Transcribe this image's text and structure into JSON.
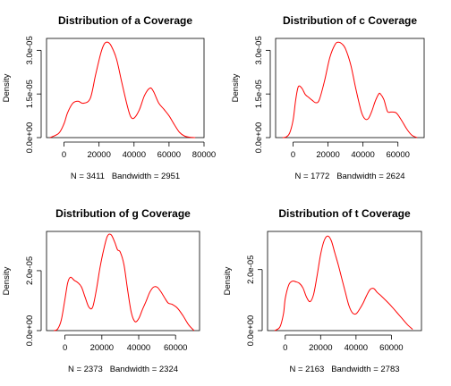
{
  "chart_data": [
    {
      "type": "line",
      "title": "Distribution of a Coverage",
      "xlabel": "N = 3411   Bandwidth = 2951",
      "ylabel": "Density",
      "x_ticks": [
        0,
        20000,
        40000,
        60000,
        80000
      ],
      "x_tick_labels": [
        "0",
        "20000",
        "40000",
        "60000",
        "80000"
      ],
      "y_ticks": [
        0,
        1.5e-05,
        3e-05
      ],
      "y_tick_labels": [
        "0.0e+00",
        "1.5e-05",
        "3.0e-05"
      ],
      "xlim": [
        -10000,
        80000
      ],
      "ylim": [
        0,
        3.41e-05
      ],
      "series": [
        {
          "color": "#ff0000",
          "x": [
            -8000,
            -3000,
            0,
            2000,
            5000,
            8000,
            11000,
            15000,
            18000,
            21000,
            23000,
            25000,
            27000,
            30000,
            33000,
            36000,
            38000,
            40000,
            43000,
            46000,
            49000,
            51000,
            54000,
            57000,
            60000,
            63000,
            66000,
            69000,
            72000,
            75000
          ],
          "y": [
            0.0,
            1.5e-06,
            4.8e-06,
            8.5e-06,
            1.18e-05,
            1.25e-05,
            1.18e-05,
            1.35e-05,
            2.15e-05,
            2.9e-05,
            3.22e-05,
            3.28e-05,
            3.15e-05,
            2.7e-05,
            1.9e-05,
            1.13e-05,
            7.3e-06,
            6.7e-06,
            9.5e-06,
            1.45e-05,
            1.7e-05,
            1.6e-05,
            1.2e-05,
            9.8e-06,
            7.5e-06,
            4.5e-06,
            1.8e-06,
            5e-07,
            1e-07,
            0.0
          ]
        }
      ]
    },
    {
      "type": "line",
      "title": "Distribution of c Coverage",
      "xlabel": "N = 1772   Bandwidth = 2624",
      "ylabel": "Density",
      "x_ticks": [
        0,
        20000,
        40000,
        60000
      ],
      "x_tick_labels": [
        "0",
        "20000",
        "40000",
        "60000"
      ],
      "y_ticks": [
        0,
        1.5e-05,
        3e-05
      ],
      "y_tick_labels": [
        "0.0e+00",
        "1.5e-05",
        "3.0e-05"
      ],
      "xlim": [
        -10000,
        75000
      ],
      "ylim": [
        0,
        3.41e-05
      ],
      "series": [
        {
          "color": "#ff0000",
          "x": [
            -6000,
            -4000,
            -2000,
            0,
            1500,
            3000,
            5000,
            7000,
            9000,
            11000,
            13000,
            15000,
            18000,
            21000,
            24000,
            26000,
            28000,
            30000,
            33000,
            36000,
            39000,
            41000,
            43000,
            45000,
            47000,
            49000,
            50000,
            52000,
            54000,
            56000,
            59000,
            62000,
            65000,
            68000,
            71000
          ],
          "y": [
            0.0,
            2e-07,
            1.5e-06,
            6e-06,
            1.3e-05,
            1.75e-05,
            1.7e-05,
            1.48e-05,
            1.38e-05,
            1.28e-05,
            1.2e-05,
            1.3e-05,
            1.95e-05,
            2.75e-05,
            3.2e-05,
            3.28e-05,
            3.22e-05,
            3.05e-05,
            2.5e-05,
            1.65e-05,
            9e-06,
            6.5e-06,
            6.5e-06,
            9e-06,
            1.25e-05,
            1.5e-05,
            1.5e-05,
            1.3e-05,
            9e-06,
            8.8e-06,
            8.5e-06,
            6e-06,
            3e-06,
            8e-07,
            0.0
          ]
        }
      ]
    },
    {
      "type": "line",
      "title": "Distribution of g Coverage",
      "xlabel": "N = 2373   Bandwidth = 2324",
      "ylabel": "Density",
      "x_ticks": [
        0,
        20000,
        40000,
        60000
      ],
      "x_tick_labels": [
        "0",
        "20000",
        "40000",
        "60000"
      ],
      "y_ticks": [
        0,
        2e-05
      ],
      "y_tick_labels": [
        "0.0e+00",
        "2.0e-05"
      ],
      "xlim": [
        -10000,
        73000
      ],
      "ylim": [
        0,
        3.31e-05
      ],
      "series": [
        {
          "color": "#ff0000",
          "x": [
            -6000,
            -4000,
            -2000,
            0,
            1500,
            3000,
            5000,
            7000,
            9000,
            11000,
            13000,
            15000,
            17000,
            19000,
            21000,
            23000,
            25000,
            27000,
            28500,
            30000,
            32000,
            34000,
            36000,
            38000,
            40000,
            42000,
            44000,
            46000,
            48000,
            50000,
            52000,
            54000,
            56000,
            58000,
            61000,
            64000,
            67000,
            70000
          ],
          "y": [
            0.0,
            5e-07,
            3.5e-06,
            1.05e-05,
            1.6e-05,
            1.78e-05,
            1.68e-05,
            1.6e-05,
            1.45e-05,
            1.1e-05,
            7.8e-06,
            7.8e-06,
            1.35e-05,
            2.1e-05,
            2.7e-05,
            3.15e-05,
            3.2e-05,
            2.95e-05,
            2.7e-05,
            2.62e-05,
            2.2e-05,
            1.35e-05,
            6e-06,
            3e-06,
            4e-06,
            7e-06,
            9.8e-06,
            1.28e-05,
            1.45e-05,
            1.45e-05,
            1.3e-05,
            1.1e-05,
            9.2e-06,
            8.8e-06,
            7.5e-06,
            5e-06,
            2e-06,
            0.0
          ]
        }
      ]
    },
    {
      "type": "line",
      "title": "Distribution of t Coverage",
      "xlabel": "N = 2163   Bandwidth = 2783",
      "ylabel": "Density",
      "x_ticks": [
        0,
        20000,
        40000,
        60000
      ],
      "x_tick_labels": [
        "0",
        "20000",
        "40000",
        "60000"
      ],
      "y_ticks": [
        0,
        2e-05
      ],
      "y_tick_labels": [
        "0.0e+00",
        "2.0e-05"
      ],
      "xlim": [
        -10000,
        77000
      ],
      "ylim": [
        0,
        3.25e-05
      ],
      "series": [
        {
          "color": "#ff0000",
          "x": [
            -6000,
            -3000,
            -1000,
            0,
            2000,
            4000,
            6000,
            8000,
            10000,
            12000,
            14000,
            16000,
            18000,
            20000,
            22000,
            24000,
            26000,
            28000,
            30000,
            32000,
            34000,
            36000,
            38000,
            40000,
            42000,
            44000,
            46000,
            48000,
            50000,
            52000,
            54000,
            57000,
            60000,
            63000,
            66000,
            69000,
            72000
          ],
          "y": [
            0.0,
            1.2e-06,
            5.5e-06,
            1.05e-05,
            1.5e-05,
            1.62e-05,
            1.6e-05,
            1.55e-05,
            1.4e-05,
            1.1e-05,
            9.5e-06,
            1.18e-05,
            1.8e-05,
            2.5e-05,
            2.95e-05,
            3.1e-05,
            2.95e-05,
            2.55e-05,
            2.15e-05,
            1.7e-05,
            1.25e-05,
            8.2e-06,
            5.8e-06,
            5.5e-06,
            7e-06,
            9e-06,
            1.15e-05,
            1.35e-05,
            1.38e-05,
            1.25e-05,
            1.15e-05,
            9.8e-06,
            8e-06,
            6e-06,
            4e-06,
            2e-06,
            4e-07
          ]
        }
      ]
    }
  ]
}
